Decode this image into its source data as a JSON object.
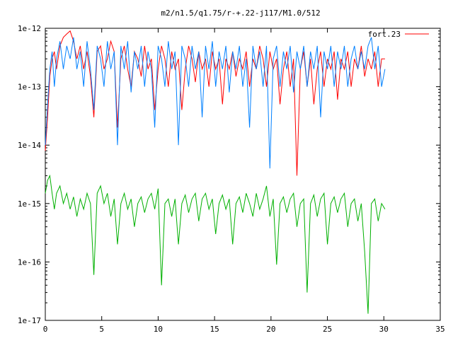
{
  "chart_data": {
    "type": "line",
    "title": "m2/n1.5/q1.75/r-+.22-j117/M1.0/512",
    "xlabel": "",
    "ylabel": "",
    "xlim": [
      0,
      35
    ],
    "ylim": [
      1e-17,
      1e-12
    ],
    "yscale": "log",
    "grid": false,
    "legend_position": "top-right",
    "x_ticks": [
      0,
      5,
      10,
      15,
      20,
      25,
      30,
      35
    ],
    "x_tick_labels": [
      "0",
      "5",
      "10",
      "15",
      "20",
      "25",
      "30",
      "35"
    ],
    "y_ticks": [
      1e-17,
      1e-16,
      1e-15,
      1e-14,
      1e-13,
      1e-12
    ],
    "y_tick_labels": [
      "1e-17",
      "1e-16",
      "1e-15",
      "1e-14",
      "1e-13",
      "1e-12"
    ],
    "series": [
      {
        "name": "fort.23",
        "color": "#ff0000",
        "x": [
          0.0,
          0.2,
          0.4,
          0.6,
          0.8,
          1.0,
          1.3,
          1.6,
          1.9,
          2.2,
          2.5,
          2.8,
          3.1,
          3.4,
          3.7,
          4.0,
          4.3,
          4.6,
          4.9,
          5.2,
          5.5,
          5.8,
          6.1,
          6.4,
          6.7,
          7.0,
          7.3,
          7.6,
          7.9,
          8.2,
          8.5,
          8.8,
          9.1,
          9.4,
          9.7,
          10.0,
          10.3,
          10.6,
          10.9,
          11.2,
          11.5,
          11.8,
          12.1,
          12.4,
          12.7,
          13.0,
          13.3,
          13.6,
          13.9,
          14.2,
          14.5,
          14.8,
          15.1,
          15.4,
          15.7,
          16.0,
          16.3,
          16.6,
          16.9,
          17.2,
          17.5,
          17.8,
          18.1,
          18.4,
          18.7,
          19.0,
          19.3,
          19.6,
          19.9,
          20.2,
          20.5,
          20.8,
          21.1,
          21.4,
          21.7,
          22.0,
          22.3,
          22.6,
          22.9,
          23.2,
          23.5,
          23.8,
          24.1,
          24.4,
          24.7,
          25.0,
          25.3,
          25.6,
          25.9,
          26.2,
          26.5,
          26.8,
          27.1,
          27.4,
          27.7,
          28.0,
          28.3,
          28.6,
          28.9,
          29.2,
          29.5,
          29.8,
          30.1
        ],
        "values": [
          8e-15,
          3e-14,
          1.5e-13,
          3e-13,
          4e-13,
          2e-13,
          5e-13,
          7e-13,
          8e-13,
          9e-13,
          6e-13,
          3e-13,
          5e-13,
          2e-13,
          4e-13,
          1.5e-13,
          3e-14,
          4e-13,
          5e-13,
          2e-13,
          3e-13,
          6e-13,
          4e-13,
          2e-14,
          3e-13,
          5e-13,
          2e-13,
          1e-13,
          4e-13,
          3e-13,
          1.5e-13,
          5e-13,
          2e-13,
          3e-13,
          4e-14,
          2e-13,
          5e-13,
          3e-13,
          1e-13,
          4e-13,
          2e-13,
          3e-13,
          4e-14,
          2e-13,
          5e-13,
          3e-13,
          1.2e-13,
          4e-13,
          2e-13,
          3e-13,
          1e-13,
          4e-13,
          2e-13,
          3e-13,
          5e-14,
          3e-13,
          2e-13,
          4e-13,
          1.5e-13,
          3e-13,
          2e-13,
          4e-13,
          1e-13,
          3e-13,
          2e-13,
          5e-13,
          3e-13,
          1e-13,
          4e-13,
          2e-13,
          3e-13,
          5e-14,
          2e-13,
          4e-13,
          1e-13,
          3e-13,
          3e-15,
          2e-13,
          4e-13,
          1e-13,
          3e-13,
          5e-14,
          2e-13,
          4e-13,
          1e-13,
          3e-13,
          2e-13,
          4e-13,
          6e-14,
          3e-13,
          2e-13,
          4e-13,
          1e-13,
          3e-13,
          2e-13,
          5e-13,
          1.5e-13,
          3e-13,
          2e-13,
          4e-13,
          1e-13,
          3e-13,
          3e-13
        ]
      },
      {
        "name": "",
        "color": "#0080ff",
        "x": [
          0.0,
          0.2,
          0.4,
          0.6,
          0.8,
          1.0,
          1.3,
          1.6,
          1.9,
          2.2,
          2.5,
          2.8,
          3.1,
          3.4,
          3.7,
          4.0,
          4.3,
          4.6,
          4.9,
          5.2,
          5.5,
          5.8,
          6.1,
          6.4,
          6.7,
          7.0,
          7.3,
          7.6,
          7.9,
          8.2,
          8.5,
          8.8,
          9.1,
          9.4,
          9.7,
          10.0,
          10.3,
          10.6,
          10.9,
          11.2,
          11.5,
          11.8,
          12.1,
          12.4,
          12.7,
          13.0,
          13.3,
          13.6,
          13.9,
          14.2,
          14.5,
          14.8,
          15.1,
          15.4,
          15.7,
          16.0,
          16.3,
          16.6,
          16.9,
          17.2,
          17.5,
          17.8,
          18.1,
          18.4,
          18.7,
          19.0,
          19.3,
          19.6,
          19.9,
          20.2,
          20.5,
          20.8,
          21.1,
          21.4,
          21.7,
          22.0,
          22.3,
          22.6,
          22.9,
          23.2,
          23.5,
          23.8,
          24.1,
          24.4,
          24.7,
          25.0,
          25.3,
          25.6,
          25.9,
          26.2,
          26.5,
          26.8,
          27.1,
          27.4,
          27.7,
          28.0,
          28.3,
          28.6,
          28.9,
          29.2,
          29.5,
          29.8,
          30.1
        ],
        "values": [
          1e-14,
          5e-14,
          2e-13,
          4e-13,
          1e-13,
          3e-13,
          6e-13,
          2e-13,
          5e-13,
          3e-13,
          7e-13,
          2e-13,
          4e-13,
          1e-13,
          6e-13,
          2e-13,
          4e-14,
          5e-13,
          3e-13,
          1e-13,
          6e-13,
          2e-13,
          4e-13,
          1e-14,
          5e-13,
          2e-13,
          6e-13,
          8e-14,
          4e-13,
          2e-13,
          5e-13,
          1e-13,
          4e-13,
          2e-13,
          2e-14,
          5e-13,
          3e-13,
          1e-13,
          6e-13,
          2e-13,
          4e-13,
          1e-14,
          5e-13,
          3e-13,
          1e-13,
          5e-13,
          2e-13,
          4e-13,
          3e-14,
          5e-13,
          2e-13,
          6e-13,
          1e-13,
          4e-13,
          2e-13,
          5e-13,
          8e-14,
          4e-13,
          2e-13,
          5e-13,
          1e-13,
          3e-13,
          2e-14,
          5e-13,
          2e-13,
          4e-13,
          1e-13,
          5e-13,
          4e-15,
          3e-13,
          5e-13,
          1e-13,
          4e-13,
          2e-13,
          5e-13,
          8e-14,
          4e-13,
          2e-13,
          5e-13,
          1e-13,
          4e-13,
          2e-13,
          5e-13,
          3e-14,
          4e-13,
          2e-13,
          5e-13,
          1e-13,
          4e-13,
          2e-13,
          5e-13,
          1e-13,
          3e-13,
          5e-13,
          2e-13,
          4e-13,
          2e-13,
          5e-13,
          7e-13,
          2e-13,
          5e-13,
          1e-13,
          2e-13
        ]
      },
      {
        "name": "",
        "color": "#00b000",
        "x": [
          0.0,
          0.2,
          0.4,
          0.6,
          0.8,
          1.0,
          1.3,
          1.6,
          1.9,
          2.2,
          2.5,
          2.8,
          3.1,
          3.4,
          3.7,
          4.0,
          4.3,
          4.6,
          4.9,
          5.2,
          5.5,
          5.8,
          6.1,
          6.4,
          6.7,
          7.0,
          7.3,
          7.6,
          7.9,
          8.2,
          8.5,
          8.8,
          9.1,
          9.4,
          9.7,
          10.0,
          10.3,
          10.6,
          10.9,
          11.2,
          11.5,
          11.8,
          12.1,
          12.4,
          12.7,
          13.0,
          13.3,
          13.6,
          13.9,
          14.2,
          14.5,
          14.8,
          15.1,
          15.4,
          15.7,
          16.0,
          16.3,
          16.6,
          16.9,
          17.2,
          17.5,
          17.8,
          18.1,
          18.4,
          18.7,
          19.0,
          19.3,
          19.6,
          19.9,
          20.2,
          20.5,
          20.8,
          21.1,
          21.4,
          21.7,
          22.0,
          22.3,
          22.6,
          22.9,
          23.2,
          23.5,
          23.8,
          24.1,
          24.4,
          24.7,
          25.0,
          25.3,
          25.6,
          25.9,
          26.2,
          26.5,
          26.8,
          27.1,
          27.4,
          27.7,
          28.0,
          28.3,
          28.6,
          28.9,
          29.2,
          29.5,
          29.8,
          30.1
        ],
        "values": [
          1.5e-15,
          2.5e-15,
          3e-15,
          1.5e-15,
          8e-16,
          1.5e-15,
          2e-15,
          1e-15,
          1.5e-15,
          8e-16,
          1.3e-15,
          6e-16,
          1.2e-15,
          8e-16,
          1.5e-15,
          1e-15,
          6e-17,
          1.5e-15,
          2e-15,
          1e-15,
          1.5e-15,
          6e-16,
          1.2e-15,
          2e-16,
          1e-15,
          1.5e-15,
          8e-16,
          1.2e-15,
          4e-16,
          1e-15,
          1.3e-15,
          7e-16,
          1.2e-15,
          1.5e-15,
          8e-16,
          1.8e-15,
          4e-17,
          1e-15,
          1.2e-15,
          6e-16,
          1.2e-15,
          2e-16,
          1e-15,
          1.4e-15,
          7e-16,
          1.2e-15,
          1.5e-15,
          5e-16,
          1.2e-15,
          1.5e-15,
          8e-16,
          1.2e-15,
          3e-16,
          1e-15,
          1.4e-15,
          8e-16,
          1.2e-15,
          2e-16,
          1e-15,
          1.3e-15,
          7e-16,
          1.5e-15,
          1e-15,
          6e-16,
          1.5e-15,
          8e-16,
          1.2e-15,
          2e-15,
          6e-16,
          1.2e-15,
          9e-17,
          1e-15,
          1.3e-15,
          7e-16,
          1.2e-15,
          1.5e-15,
          4e-16,
          1e-15,
          1.2e-15,
          3e-17,
          1e-15,
          1.4e-15,
          6e-16,
          1.2e-15,
          1.5e-15,
          2e-16,
          1e-15,
          1.3e-15,
          7e-16,
          1.2e-15,
          1.5e-15,
          4e-16,
          1e-15,
          1.2e-15,
          5e-16,
          1e-15,
          1.5e-16,
          1.3e-17,
          1e-15,
          1.2e-15,
          5e-16,
          1e-15,
          8e-16
        ]
      }
    ]
  }
}
